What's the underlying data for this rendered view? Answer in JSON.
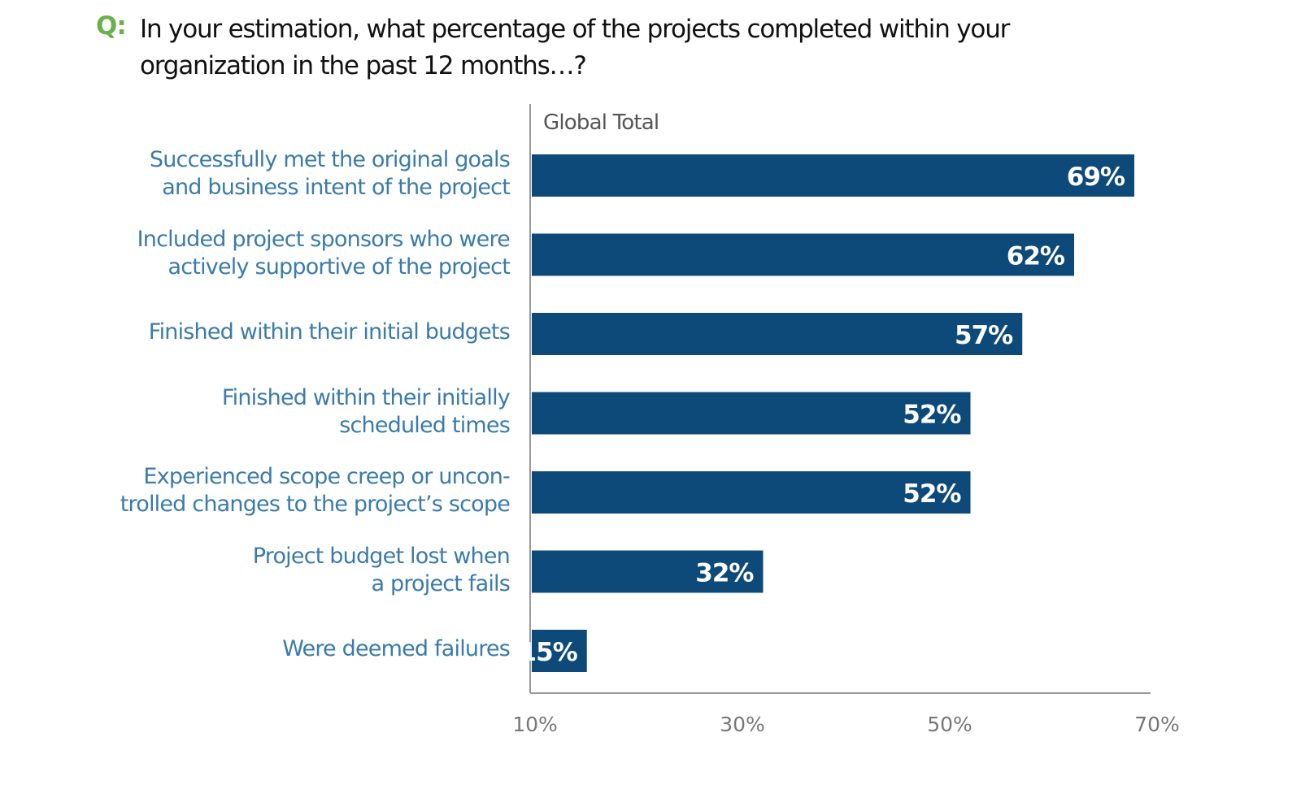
{
  "question_prefix": "Q:",
  "chart_data": {
    "type": "bar",
    "orientation": "horizontal",
    "title": "In your estimation, what percentage of the projects completed within your organization in the past 12 months…?",
    "series_label": "Global Total",
    "categories": [
      [
        "Successfully met the original goals",
        "and business intent of the project"
      ],
      [
        "Included project sponsors who were",
        "actively supportive of the project"
      ],
      [
        "Finished within their initial budgets"
      ],
      [
        "Finished within their initially",
        "scheduled times"
      ],
      [
        "Experienced scope creep or uncon-",
        "trolled changes to the project’s scope"
      ],
      [
        "Project budget lost when",
        "a project fails"
      ],
      [
        "Were deemed failures"
      ]
    ],
    "values": [
      69,
      62,
      57,
      52,
      52,
      32,
      15
    ],
    "data_labels": [
      "69%",
      "62%",
      "57%",
      "52%",
      "52%",
      "32%",
      "15%"
    ],
    "xlim": [
      10,
      70
    ],
    "x_ticks": [
      10,
      30,
      50,
      70
    ],
    "x_tick_labels": [
      "10%",
      "30%",
      "50%",
      "70%"
    ],
    "grid": false,
    "colors": {
      "bar": "#0d4a7a",
      "label": "#3a7bab",
      "accent": "#6ab04c",
      "axis": "#999999"
    }
  }
}
